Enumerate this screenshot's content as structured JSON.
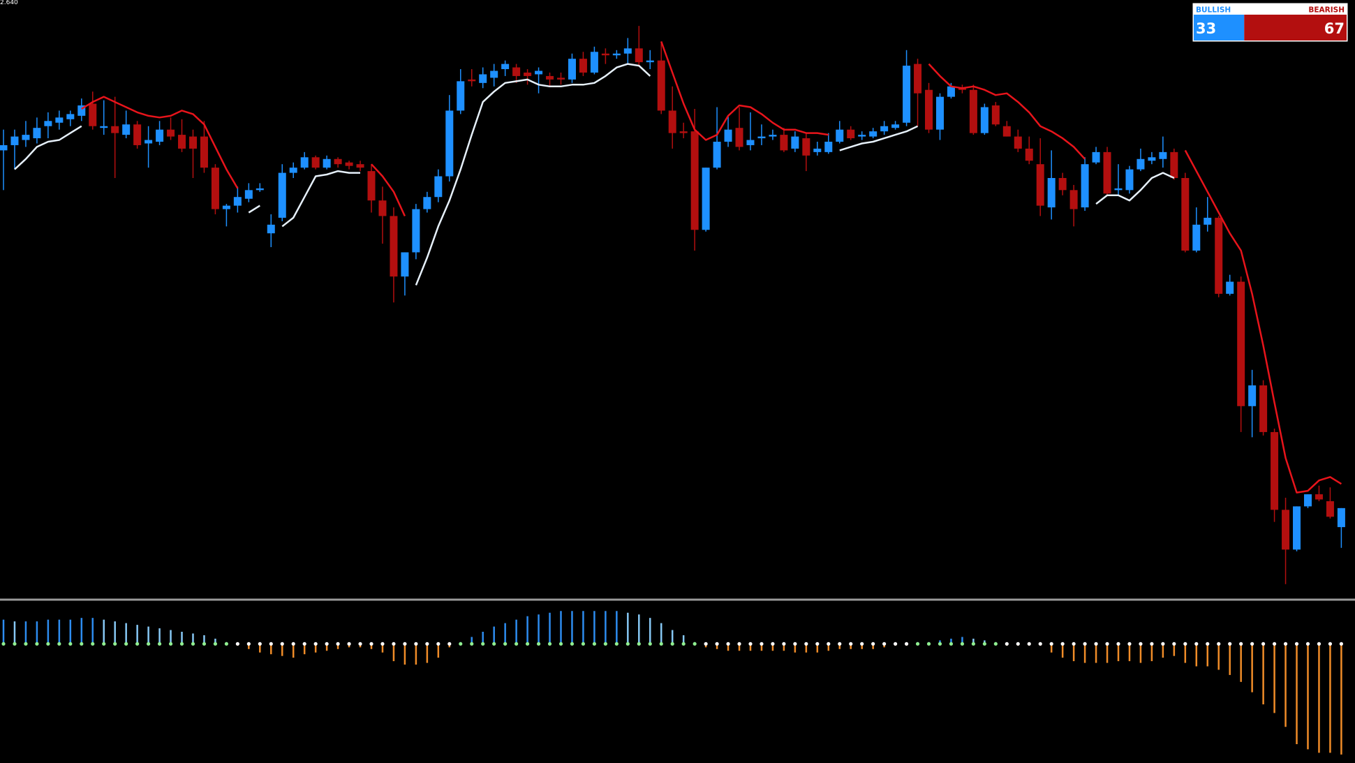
{
  "chart_data": [
    {
      "type": "candlestick",
      "ylim": [
        2.29,
        2.64
      ],
      "yticks": [
        {
          "value": 2.64,
          "label": "2.640"
        }
      ],
      "grid": false,
      "up_color": "#1e90ff",
      "down_color": "#b30f0f",
      "ohlc": [
        [
          2.553,
          2.565,
          2.53,
          2.556
        ],
        [
          2.556,
          2.565,
          2.542,
          2.561
        ],
        [
          2.559,
          2.57,
          2.555,
          2.562
        ],
        [
          2.56,
          2.572,
          2.557,
          2.566
        ],
        [
          2.567,
          2.575,
          2.56,
          2.57
        ],
        [
          2.569,
          2.576,
          2.565,
          2.572
        ],
        [
          2.571,
          2.576,
          2.567,
          2.574
        ],
        [
          2.573,
          2.583,
          2.57,
          2.579
        ],
        [
          2.58,
          2.587,
          2.565,
          2.567
        ],
        [
          2.566,
          2.582,
          2.562,
          2.567
        ],
        [
          2.567,
          2.584,
          2.537,
          2.563
        ],
        [
          2.562,
          2.576,
          2.56,
          2.568
        ],
        [
          2.568,
          2.57,
          2.554,
          2.556
        ],
        [
          2.557,
          2.567,
          2.543,
          2.559
        ],
        [
          2.558,
          2.57,
          2.556,
          2.565
        ],
        [
          2.565,
          2.572,
          2.559,
          2.561
        ],
        [
          2.562,
          2.571,
          2.552,
          2.554
        ],
        [
          2.561,
          2.565,
          2.537,
          2.554
        ],
        [
          2.561,
          2.57,
          2.54,
          2.543
        ],
        [
          2.543,
          2.545,
          2.516,
          2.519
        ],
        [
          2.519,
          2.522,
          2.509,
          2.521
        ],
        [
          2.521,
          2.532,
          2.517,
          2.526
        ],
        [
          2.525,
          2.534,
          2.523,
          2.53
        ],
        [
          2.53,
          2.534,
          2.529,
          2.531
        ],
        [
          2.505,
          2.516,
          2.497,
          2.51
        ],
        [
          2.514,
          2.545,
          2.512,
          2.54
        ],
        [
          2.54,
          2.546,
          2.537,
          2.543
        ],
        [
          2.543,
          2.552,
          2.542,
          2.549
        ],
        [
          2.549,
          2.55,
          2.542,
          2.543
        ],
        [
          2.543,
          2.55,
          2.542,
          2.548
        ],
        [
          2.548,
          2.549,
          2.543,
          2.545
        ],
        [
          2.546,
          2.547,
          2.542,
          2.544
        ],
        [
          2.545,
          2.547,
          2.541,
          2.543
        ],
        [
          2.541,
          2.545,
          2.517,
          2.524
        ],
        [
          2.524,
          2.532,
          2.499,
          2.515
        ],
        [
          2.515,
          2.52,
          2.465,
          2.48
        ],
        [
          2.48,
          2.494,
          2.469,
          2.494
        ],
        [
          2.494,
          2.522,
          2.49,
          2.519
        ],
        [
          2.519,
          2.529,
          2.517,
          2.526
        ],
        [
          2.526,
          2.542,
          2.523,
          2.538
        ],
        [
          2.538,
          2.585,
          2.535,
          2.576
        ],
        [
          2.576,
          2.6,
          2.574,
          2.593
        ],
        [
          2.594,
          2.6,
          2.59,
          2.593
        ],
        [
          2.592,
          2.601,
          2.589,
          2.597
        ],
        [
          2.595,
          2.603,
          2.59,
          2.599
        ],
        [
          2.6,
          2.605,
          2.596,
          2.603
        ],
        [
          2.601,
          2.603,
          2.592,
          2.596
        ],
        [
          2.598,
          2.6,
          2.591,
          2.596
        ],
        [
          2.597,
          2.601,
          2.586,
          2.599
        ],
        [
          2.596,
          2.598,
          2.59,
          2.594
        ],
        [
          2.595,
          2.598,
          2.591,
          2.594
        ],
        [
          2.594,
          2.609,
          2.592,
          2.606
        ],
        [
          2.606,
          2.61,
          2.596,
          2.598
        ],
        [
          2.598,
          2.613,
          2.597,
          2.61
        ],
        [
          2.609,
          2.612,
          2.603,
          2.608
        ],
        [
          2.608,
          2.611,
          2.606,
          2.609
        ],
        [
          2.609,
          2.618,
          2.603,
          2.612
        ],
        [
          2.612,
          2.625,
          2.602,
          2.604
        ],
        [
          2.604,
          2.611,
          2.6,
          2.605
        ],
        [
          2.605,
          2.616,
          2.574,
          2.576
        ],
        [
          2.576,
          2.59,
          2.554,
          2.563
        ],
        [
          2.564,
          2.569,
          2.56,
          2.563
        ],
        [
          2.564,
          2.577,
          2.495,
          2.507
        ],
        [
          2.507,
          2.543,
          2.506,
          2.543
        ],
        [
          2.543,
          2.578,
          2.542,
          2.558
        ],
        [
          2.558,
          2.573,
          2.555,
          2.565
        ],
        [
          2.566,
          2.578,
          2.553,
          2.555
        ],
        [
          2.556,
          2.575,
          2.553,
          2.559
        ],
        [
          2.56,
          2.568,
          2.556,
          2.561
        ],
        [
          2.561,
          2.565,
          2.559,
          2.562
        ],
        [
          2.562,
          2.566,
          2.552,
          2.553
        ],
        [
          2.554,
          2.564,
          2.552,
          2.561
        ],
        [
          2.56,
          2.563,
          2.541,
          2.55
        ],
        [
          2.552,
          2.558,
          2.55,
          2.554
        ],
        [
          2.552,
          2.563,
          2.551,
          2.558
        ],
        [
          2.558,
          2.57,
          2.557,
          2.565
        ],
        [
          2.565,
          2.567,
          2.559,
          2.56
        ],
        [
          2.561,
          2.564,
          2.559,
          2.562
        ],
        [
          2.561,
          2.566,
          2.56,
          2.564
        ],
        [
          2.564,
          2.57,
          2.562,
          2.567
        ],
        [
          2.566,
          2.57,
          2.565,
          2.568
        ],
        [
          2.569,
          2.611,
          2.567,
          2.602
        ],
        [
          2.603,
          2.606,
          2.567,
          2.586
        ],
        [
          2.588,
          2.592,
          2.563,
          2.565
        ],
        [
          2.565,
          2.586,
          2.559,
          2.584
        ],
        [
          2.584,
          2.592,
          2.583,
          2.59
        ],
        [
          2.589,
          2.591,
          2.586,
          2.588
        ],
        [
          2.588,
          2.591,
          2.562,
          2.563
        ],
        [
          2.563,
          2.58,
          2.562,
          2.578
        ],
        [
          2.579,
          2.581,
          2.567,
          2.568
        ],
        [
          2.567,
          2.57,
          2.561,
          2.561
        ],
        [
          2.561,
          2.565,
          2.552,
          2.554
        ],
        [
          2.554,
          2.561,
          2.545,
          2.547
        ],
        [
          2.545,
          2.56,
          2.515,
          2.521
        ],
        [
          2.52,
          2.553,
          2.513,
          2.537
        ],
        [
          2.537,
          2.54,
          2.527,
          2.53
        ],
        [
          2.53,
          2.533,
          2.509,
          2.519
        ],
        [
          2.52,
          2.549,
          2.518,
          2.545
        ],
        [
          2.546,
          2.555,
          2.545,
          2.552
        ],
        [
          2.552,
          2.555,
          2.527,
          2.528
        ],
        [
          2.53,
          2.545,
          2.527,
          2.531
        ],
        [
          2.53,
          2.544,
          2.528,
          2.542
        ],
        [
          2.542,
          2.554,
          2.541,
          2.548
        ],
        [
          2.547,
          2.552,
          2.545,
          2.549
        ],
        [
          2.548,
          2.561,
          2.543,
          2.552
        ],
        [
          2.552,
          2.554,
          2.536,
          2.537
        ],
        [
          2.537,
          2.54,
          2.494,
          2.495
        ],
        [
          2.495,
          2.52,
          2.494,
          2.51
        ],
        [
          2.51,
          2.526,
          2.506,
          2.514
        ],
        [
          2.514,
          2.515,
          2.468,
          2.47
        ],
        [
          2.47,
          2.481,
          2.469,
          2.477
        ],
        [
          2.477,
          2.48,
          2.39,
          2.405
        ],
        [
          2.405,
          2.426,
          2.387,
          2.417
        ],
        [
          2.417,
          2.42,
          2.388,
          2.39
        ],
        [
          2.39,
          2.392,
          2.338,
          2.345
        ],
        [
          2.345,
          2.352,
          2.302,
          2.322
        ],
        [
          2.322,
          2.347,
          2.321,
          2.347
        ],
        [
          2.347,
          2.354,
          2.346,
          2.354
        ],
        [
          2.354,
          2.359,
          2.35,
          2.351
        ],
        [
          2.35,
          2.358,
          2.34,
          2.341
        ],
        [
          2.335,
          2.346,
          2.323,
          2.346
        ]
      ],
      "series": [
        {
          "color": "#e8141b",
          "values": [
            null,
            null,
            null,
            null,
            null,
            null,
            null,
            2.577,
            2.581,
            2.584,
            2.581,
            2.578,
            2.575,
            2.573,
            2.572,
            2.573,
            2.576,
            2.574,
            2.568,
            2.555,
            2.542,
            2.531,
            null,
            null,
            null,
            null,
            null,
            null,
            null,
            null,
            null,
            null,
            null,
            2.545,
            2.538,
            2.529,
            2.515,
            null,
            null,
            null,
            null,
            null,
            null,
            null,
            null,
            null,
            null,
            null,
            null,
            null,
            null,
            null,
            null,
            null,
            null,
            null,
            null,
            null,
            null,
            2.616,
            2.598,
            2.58,
            2.565,
            2.559,
            2.562,
            2.573,
            2.579,
            2.578,
            2.574,
            2.569,
            2.565,
            2.565,
            2.563,
            2.563,
            2.562,
            null,
            null,
            null,
            null,
            null,
            null,
            null,
            null,
            2.603,
            2.596,
            2.59,
            2.589,
            2.59,
            2.588,
            2.585,
            2.586,
            2.581,
            2.575,
            2.567,
            2.564,
            2.56,
            2.555,
            2.548,
            null,
            null,
            null,
            null,
            null,
            null,
            null,
            null,
            2.553,
            2.541,
            2.529,
            2.517,
            2.505,
            2.495,
            2.47,
            2.44,
            2.407,
            2.375,
            2.355,
            2.356,
            2.362,
            2.364,
            2.36
          ]
        },
        {
          "color": "#e6f0fa",
          "values": [
            null,
            2.542,
            2.548,
            2.555,
            2.558,
            2.559,
            2.563,
            2.567,
            null,
            null,
            null,
            null,
            null,
            null,
            null,
            null,
            null,
            null,
            null,
            null,
            null,
            null,
            2.517,
            2.521,
            null,
            2.509,
            2.514,
            2.526,
            2.538,
            2.539,
            2.541,
            2.54,
            2.54,
            null,
            null,
            null,
            null,
            2.475,
            2.491,
            2.509,
            2.524,
            2.542,
            2.562,
            2.581,
            2.587,
            2.592,
            2.593,
            2.594,
            2.591,
            2.59,
            2.59,
            2.591,
            2.591,
            2.592,
            2.596,
            2.601,
            2.603,
            2.602,
            2.596,
            null,
            null,
            null,
            null,
            null,
            null,
            null,
            null,
            null,
            null,
            null,
            null,
            null,
            null,
            null,
            null,
            2.553,
            2.555,
            2.557,
            2.558,
            2.56,
            2.562,
            2.564,
            2.567,
            null,
            null,
            null,
            null,
            null,
            null,
            null,
            null,
            null,
            null,
            null,
            null,
            null,
            null,
            null,
            2.522,
            2.527,
            2.527,
            2.524,
            2.53,
            2.537,
            2.54,
            2.537,
            null,
            null,
            null,
            null,
            null,
            null,
            null,
            null,
            null,
            null,
            null,
            null,
            null,
            null,
            null
          ]
        }
      ]
    },
    {
      "type": "bar",
      "ylim": [
        -137,
        45
      ],
      "rising_color": "#2d8cf0",
      "falling_color": "#87c8f5",
      "negative_color": "#f08c28",
      "positive_dot": "#90ee90",
      "negative_dot": "#ffffff",
      "values": [
        28,
        26,
        26,
        26,
        28,
        28,
        28,
        30,
        30,
        28,
        26,
        24,
        22,
        20,
        18,
        16,
        14,
        12,
        10,
        6,
        2,
        -2,
        -6,
        -10,
        -12,
        -14,
        -16,
        -12,
        -10,
        -8,
        -6,
        -4,
        -4,
        -6,
        -10,
        -20,
        -24,
        -24,
        -22,
        -16,
        -4,
        2,
        8,
        14,
        20,
        24,
        28,
        32,
        34,
        36,
        38,
        38,
        38,
        38,
        38,
        38,
        36,
        34,
        30,
        24,
        16,
        10,
        2,
        -4,
        -6,
        -8,
        -8,
        -8,
        -8,
        -8,
        -8,
        -10,
        -10,
        -10,
        -8,
        -6,
        -6,
        -6,
        -6,
        -4,
        -2,
        -2,
        2,
        2,
        4,
        6,
        8,
        6,
        4,
        2,
        -2,
        -2,
        -2,
        -2,
        -10,
        -16,
        -20,
        -22,
        -22,
        -22,
        -20,
        -20,
        -22,
        -20,
        -16,
        -14,
        -22,
        -26,
        -26,
        -30,
        -36,
        -44,
        -56,
        -70,
        -80,
        -96,
        -116,
        -122,
        -126,
        -126,
        -128
      ]
    },
    {
      "type": "gauge",
      "categories": [
        "BULLISH",
        "BEARISH"
      ],
      "values": [
        33,
        67
      ],
      "colors": [
        "#1e90ff",
        "#b30f0f"
      ]
    }
  ]
}
